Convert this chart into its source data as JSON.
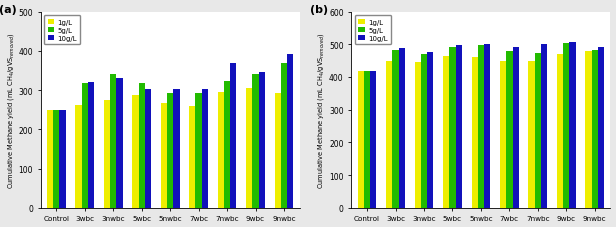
{
  "panel_a": {
    "label": "(a)",
    "categories": [
      "Control",
      "3wbc",
      "3nwbc",
      "5wbc",
      "5nwbc",
      "7wbc",
      "7nwbc",
      "9wbc",
      "9nwbc"
    ],
    "series": {
      "1g/L": [
        248,
        263,
        275,
        288,
        268,
        260,
        295,
        305,
        293
      ],
      "5g/L": [
        248,
        318,
        342,
        317,
        293,
        293,
        322,
        340,
        370
      ],
      "10g/L": [
        248,
        320,
        332,
        302,
        302,
        302,
        368,
        347,
        393
      ]
    },
    "ylim": [
      0,
      500
    ],
    "yticks": [
      0,
      100,
      200,
      300,
      400,
      500
    ],
    "ylabel": "Cumulative Methane yield (mL CH$_4$/gVS$_{removed}$)"
  },
  "panel_b": {
    "label": "(b)",
    "categories": [
      "Control",
      "3wbc",
      "3nwbc",
      "5wbc",
      "5nwbc",
      "7wbc",
      "7nwbc",
      "9wbc",
      "9nwbc"
    ],
    "series": {
      "1g/L": [
        418,
        448,
        445,
        465,
        460,
        450,
        448,
        470,
        480
      ],
      "5g/L": [
        418,
        483,
        470,
        493,
        498,
        480,
        472,
        503,
        483
      ],
      "10g/L": [
        418,
        488,
        477,
        498,
        502,
        493,
        502,
        507,
        492
      ]
    },
    "ylim": [
      0,
      600
    ],
    "yticks": [
      0,
      100,
      200,
      300,
      400,
      500,
      600
    ],
    "ylabel": "Cumulative Methane yield (mL CH$_4$/gVS$_{removed}$)"
  },
  "colors": {
    "1g/L": "#EEEE00",
    "5g/L": "#22BB00",
    "10g/L": "#1111BB"
  },
  "legend_labels": [
    "1g/L",
    "5g/L",
    "10g/L"
  ],
  "bar_width": 0.22,
  "background_color": "#ffffff",
  "fig_background": "#e8e8e8"
}
